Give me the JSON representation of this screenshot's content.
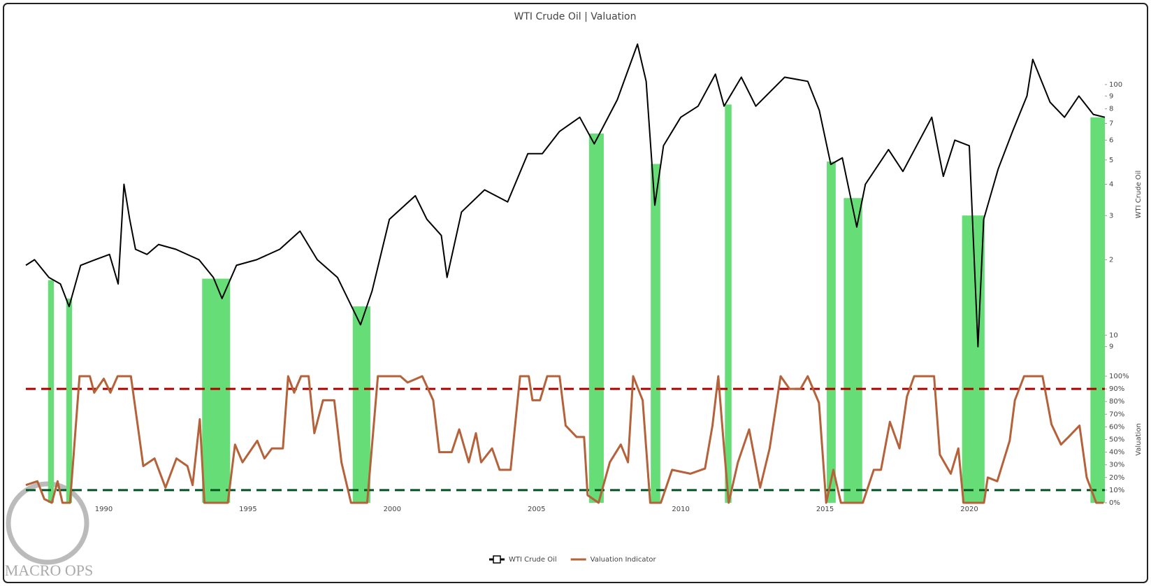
{
  "chart_data": [
    {
      "type": "line",
      "title": "WTI Crude Oil | Valuation",
      "y_label": "WTI Crude Oil",
      "log_scale": true,
      "xlim": [
        1987.3,
        2024.7
      ],
      "ylim": [
        8,
        166
      ],
      "yticks": [
        {
          "value": 9,
          "label": "9"
        },
        10,
        {
          "value": 20,
          "label": "2"
        },
        {
          "value": 30,
          "label": "3"
        },
        {
          "value": 40,
          "label": "4"
        },
        {
          "value": 50,
          "label": "5"
        },
        {
          "value": 60,
          "label": "6"
        },
        {
          "value": 70,
          "label": "7"
        },
        {
          "value": 80,
          "label": "8"
        },
        {
          "value": 90,
          "label": "9"
        },
        100
      ],
      "x": [
        1987.3,
        1987.6,
        1988.1,
        1988.5,
        1988.8,
        1989.2,
        1989.7,
        1990.2,
        1990.5,
        1990.7,
        1990.9,
        1991.1,
        1991.5,
        1991.9,
        1992.5,
        1993.3,
        1993.8,
        1994.1,
        1994.6,
        1995.3,
        1996.1,
        1996.8,
        1997.4,
        1998.1,
        1998.9,
        1999.3,
        1999.9,
        2000.8,
        2001.2,
        2001.7,
        2001.9,
        2002.4,
        2003.2,
        2004.0,
        2004.7,
        2005.2,
        2005.8,
        2006.5,
        2007.0,
        2007.8,
        2008.5,
        2008.8,
        2009.1,
        2009.4,
        2010.0,
        2010.6,
        2011.2,
        2011.5,
        2012.1,
        2012.6,
        2013.6,
        2014.4,
        2014.8,
        2015.2,
        2015.6,
        2016.1,
        2016.4,
        2017.2,
        2017.7,
        2018.7,
        2019.1,
        2019.5,
        2020.0,
        2020.3,
        2020.5,
        2021.0,
        2021.5,
        2022.0,
        2022.2,
        2022.8,
        2023.3,
        2023.8,
        2024.3,
        2024.7
      ],
      "series": [
        {
          "name": "WTI Crude Oil",
          "color": "#000000",
          "values": [
            19,
            20,
            17,
            16,
            13,
            19,
            20,
            21,
            16,
            40,
            29,
            22,
            21,
            23,
            22,
            20,
            17,
            14,
            19,
            20,
            22,
            26,
            20,
            17,
            11,
            15,
            29,
            36,
            29,
            25,
            17,
            31,
            38,
            34,
            53,
            53,
            65,
            74,
            58,
            87,
            145,
            103,
            33,
            57,
            74,
            82,
            110,
            82,
            107,
            82,
            107,
            103,
            79,
            48,
            51,
            27,
            40,
            55,
            45,
            74,
            43,
            60,
            57,
            9,
            29,
            46,
            65,
            90,
            126,
            85,
            74,
            90,
            76,
            74
          ]
        }
      ],
      "highlight_color": "#66dd77",
      "highlights": [
        [
          1988.07,
          1988.27
        ],
        [
          1988.7,
          1988.9
        ],
        [
          1993.41,
          1994.38
        ],
        [
          1998.63,
          1999.24
        ],
        [
          2006.82,
          2007.33
        ],
        [
          2008.96,
          2009.29
        ],
        [
          2011.53,
          2011.76
        ],
        [
          2015.06,
          2015.37
        ],
        [
          2015.65,
          2016.29
        ],
        [
          2019.75,
          2020.53
        ],
        [
          2024.2,
          2024.7
        ]
      ],
      "watermark": "MACRO OPS"
    },
    {
      "type": "line",
      "y_label": "Valuation",
      "xlim": [
        1987.3,
        2024.7
      ],
      "ylim": [
        0,
        100
      ],
      "xticks": [
        1990,
        1995,
        2000,
        2005,
        2010,
        2015,
        2020
      ],
      "yticks": [
        {
          "value": 0,
          "label": "0%"
        },
        {
          "value": 10,
          "label": "10%"
        },
        {
          "value": 20,
          "label": "20%"
        },
        {
          "value": 30,
          "label": "30%"
        },
        {
          "value": 40,
          "label": "40%"
        },
        {
          "value": 50,
          "label": "50%"
        },
        {
          "value": 60,
          "label": "60%"
        },
        {
          "value": 70,
          "label": "70%"
        },
        {
          "value": 80,
          "label": "80%"
        },
        {
          "value": 90,
          "label": "90%"
        },
        {
          "value": 100,
          "label": "100%"
        }
      ],
      "reference_lines": [
        {
          "value": 90,
          "color": "#b00000"
        },
        {
          "value": 10,
          "color": "#005522"
        }
      ],
      "x": [
        1987.3,
        1987.7,
        1987.94,
        1988.2,
        1988.4,
        1988.57,
        1988.83,
        1989.16,
        1989.52,
        1989.67,
        1990.0,
        1990.23,
        1990.48,
        1990.94,
        1991.25,
        1991.37,
        1991.76,
        1992.14,
        1992.52,
        1992.9,
        1993.08,
        1993.33,
        1993.49,
        1994.3,
        1994.55,
        1994.81,
        1995.32,
        1995.57,
        1995.83,
        1996.21,
        1996.39,
        1996.6,
        1996.84,
        1997.1,
        1997.3,
        1997.6,
        1997.99,
        1998.24,
        1998.57,
        1999.13,
        1999.5,
        2000.28,
        2000.53,
        2001.04,
        2001.42,
        2001.63,
        2002.06,
        2002.32,
        2002.65,
        2002.9,
        2003.08,
        2003.46,
        2003.72,
        2004.1,
        2004.43,
        2004.73,
        2004.86,
        2005.12,
        2005.37,
        2005.8,
        2006.01,
        2006.39,
        2006.65,
        2006.77,
        2007.15,
        2007.54,
        2007.92,
        2008.17,
        2008.35,
        2008.68,
        2008.94,
        2009.31,
        2009.7,
        2010.33,
        2010.84,
        2011.1,
        2011.3,
        2011.48,
        2011.66,
        2011.98,
        2012.37,
        2012.75,
        2013.08,
        2013.46,
        2013.77,
        2014.15,
        2014.4,
        2014.79,
        2015.04,
        2015.29,
        2015.55,
        2016.31,
        2016.69,
        2016.94,
        2017.25,
        2017.58,
        2017.84,
        2018.09,
        2018.78,
        2018.98,
        2019.36,
        2019.62,
        2019.8,
        2020.51,
        2020.64,
        2020.97,
        2021.4,
        2021.58,
        2021.9,
        2022.54,
        2022.85,
        2023.18,
        2023.44,
        2023.82,
        2024.07,
        2024.4,
        2024.66
      ],
      "series": [
        {
          "name": "Valuation Indicator",
          "color": "#b5613a",
          "values": [
            14,
            17,
            3,
            0,
            17,
            0,
            0,
            100,
            100,
            87,
            98,
            87,
            100,
            100,
            49,
            29,
            35,
            12,
            35,
            29,
            14,
            66,
            0,
            0,
            46,
            32,
            49,
            35,
            43,
            43,
            100,
            87,
            100,
            100,
            55,
            81,
            81,
            32,
            0,
            0,
            100,
            100,
            95,
            100,
            81,
            40,
            40,
            58,
            32,
            55,
            32,
            43,
            26,
            26,
            100,
            100,
            81,
            81,
            100,
            100,
            61,
            52,
            52,
            6,
            0,
            32,
            46,
            32,
            100,
            81,
            0,
            0,
            26,
            23,
            27,
            61,
            100,
            49,
            0,
            32,
            58,
            12,
            43,
            100,
            90,
            90,
            100,
            79,
            0,
            26,
            0,
            0,
            26,
            26,
            64,
            43,
            84,
            100,
            100,
            38,
            23,
            43,
            0,
            0,
            20,
            17,
            49,
            81,
            100,
            100,
            62,
            46,
            52,
            61,
            20,
            0,
            0
          ]
        }
      ]
    }
  ]
}
